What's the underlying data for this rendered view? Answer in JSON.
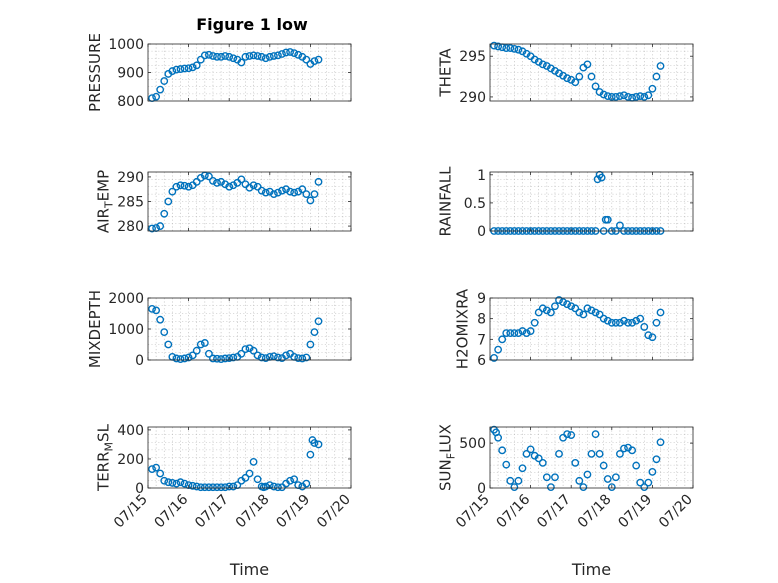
{
  "figure": {
    "title": "Figure 1 low",
    "accent_color": "#0072BD"
  },
  "chart_data": [
    {
      "type": "scatter",
      "ylabel": "PRESSURE",
      "ylim": [
        800,
        1000
      ],
      "yticks": [
        800,
        900,
        1000
      ],
      "xlabel": "",
      "xtick_labels": [],
      "grid": true,
      "x": [
        15.1,
        15.2,
        15.3,
        15.4,
        15.5,
        15.6,
        15.7,
        15.8,
        15.9,
        16.0,
        16.1,
        16.2,
        16.3,
        16.4,
        16.5,
        16.6,
        16.7,
        16.8,
        16.9,
        17.0,
        17.1,
        17.2,
        17.3,
        17.4,
        17.5,
        17.6,
        17.7,
        17.8,
        17.9,
        18.0,
        18.1,
        18.2,
        18.3,
        18.4,
        18.5,
        18.6,
        18.7,
        18.8,
        18.9,
        19.0,
        19.1,
        19.2
      ],
      "y": [
        810,
        815,
        840,
        870,
        895,
        905,
        910,
        912,
        914,
        915,
        918,
        925,
        945,
        960,
        962,
        958,
        955,
        955,
        958,
        955,
        950,
        945,
        935,
        955,
        958,
        960,
        958,
        955,
        950,
        955,
        958,
        960,
        965,
        970,
        972,
        968,
        962,
        955,
        945,
        930,
        940,
        945
      ]
    },
    {
      "type": "scatter",
      "ylabel": "THETA",
      "ylim": [
        289.5,
        296.5
      ],
      "yticks": [
        290,
        295
      ],
      "xlabel": "",
      "xtick_labels": [],
      "grid": true,
      "x": [
        15.1,
        15.2,
        15.3,
        15.4,
        15.5,
        15.6,
        15.7,
        15.8,
        15.9,
        16.0,
        16.1,
        16.2,
        16.3,
        16.4,
        16.5,
        16.6,
        16.7,
        16.8,
        16.9,
        17.0,
        17.1,
        17.2,
        17.3,
        17.4,
        17.5,
        17.6,
        17.7,
        17.8,
        17.9,
        18.0,
        18.1,
        18.2,
        18.3,
        18.4,
        18.5,
        18.6,
        18.7,
        18.8,
        18.9,
        19.0,
        19.1,
        19.2
      ],
      "y": [
        296.3,
        296.2,
        296.1,
        296.0,
        296.0,
        295.9,
        295.8,
        295.6,
        295.3,
        295.0,
        294.6,
        294.3,
        294.0,
        293.8,
        293.5,
        293.2,
        292.9,
        292.6,
        292.3,
        292.1,
        291.8,
        292.5,
        293.6,
        294.0,
        292.5,
        291.3,
        290.6,
        290.3,
        290.1,
        290.0,
        290.0,
        290.1,
        290.2,
        290.0,
        289.9,
        290.0,
        290.1,
        290.0,
        290.2,
        291.0,
        292.5,
        293.8
      ]
    },
    {
      "type": "scatter",
      "ylabel": "AIR_TEMP",
      "ylim": [
        279,
        291
      ],
      "yticks": [
        280,
        285,
        290
      ],
      "xlabel": "",
      "xtick_labels": [],
      "grid": true,
      "x": [
        15.1,
        15.2,
        15.3,
        15.4,
        15.5,
        15.6,
        15.7,
        15.8,
        15.9,
        16.0,
        16.1,
        16.2,
        16.3,
        16.4,
        16.5,
        16.6,
        16.7,
        16.8,
        16.9,
        17.0,
        17.1,
        17.2,
        17.3,
        17.4,
        17.5,
        17.6,
        17.7,
        17.8,
        17.9,
        18.0,
        18.1,
        18.2,
        18.3,
        18.4,
        18.5,
        18.6,
        18.7,
        18.8,
        18.9,
        19.0,
        19.1,
        19.2
      ],
      "y": [
        279.5,
        279.6,
        280.0,
        282.5,
        285.0,
        287.0,
        288.0,
        288.3,
        288.2,
        288.0,
        288.3,
        289.0,
        289.8,
        290.3,
        290.1,
        289.2,
        288.8,
        289.0,
        288.5,
        288.0,
        288.3,
        288.8,
        289.5,
        288.5,
        287.8,
        288.3,
        288.0,
        287.2,
        286.8,
        287.0,
        286.5,
        286.8,
        287.2,
        287.5,
        287.0,
        286.8,
        287.0,
        287.5,
        286.5,
        285.2,
        286.5,
        289.0
      ]
    },
    {
      "type": "scatter",
      "ylabel": "RAINFALL",
      "ylim": [
        0,
        1.05
      ],
      "yticks": [
        0,
        0.5,
        1
      ],
      "xlabel": "",
      "xtick_labels": [],
      "grid": true,
      "x": [
        15.1,
        15.2,
        15.3,
        15.4,
        15.5,
        15.6,
        15.7,
        15.8,
        15.9,
        16.0,
        16.1,
        16.2,
        16.3,
        16.4,
        16.5,
        16.6,
        16.7,
        16.8,
        16.9,
        17.0,
        17.1,
        17.2,
        17.3,
        17.4,
        17.5,
        17.6,
        17.65,
        17.7,
        17.75,
        17.8,
        17.85,
        17.9,
        18.0,
        18.1,
        18.2,
        18.3,
        18.4,
        18.5,
        18.6,
        18.7,
        18.8,
        18.9,
        19.0,
        19.1,
        19.2
      ],
      "y": [
        0,
        0,
        0,
        0,
        0,
        0,
        0,
        0,
        0,
        0,
        0,
        0,
        0,
        0,
        0,
        0,
        0,
        0,
        0,
        0,
        0,
        0,
        0,
        0,
        0,
        0,
        0.92,
        1.0,
        0.95,
        0,
        0.2,
        0.2,
        0,
        0,
        0.1,
        0,
        0,
        0,
        0,
        0,
        0,
        0,
        0,
        0,
        0
      ]
    },
    {
      "type": "scatter",
      "ylabel": "MIXDEPTH",
      "ylim": [
        0,
        2000
      ],
      "yticks": [
        0,
        1000,
        2000
      ],
      "xlabel": "",
      "xtick_labels": [],
      "grid": true,
      "x": [
        15.1,
        15.2,
        15.3,
        15.4,
        15.5,
        15.6,
        15.7,
        15.8,
        15.9,
        16.0,
        16.1,
        16.2,
        16.3,
        16.4,
        16.5,
        16.6,
        16.7,
        16.8,
        16.9,
        17.0,
        17.1,
        17.2,
        17.3,
        17.4,
        17.5,
        17.6,
        17.7,
        17.8,
        17.9,
        18.0,
        18.1,
        18.2,
        18.3,
        18.4,
        18.5,
        18.6,
        18.7,
        18.8,
        18.9,
        19.0,
        19.1,
        19.2
      ],
      "y": [
        1650,
        1600,
        1300,
        900,
        500,
        100,
        50,
        30,
        50,
        80,
        150,
        300,
        500,
        550,
        200,
        50,
        40,
        30,
        50,
        60,
        80,
        100,
        200,
        350,
        380,
        300,
        150,
        80,
        60,
        100,
        120,
        80,
        60,
        150,
        200,
        100,
        60,
        50,
        80,
        500,
        900,
        1250
      ]
    },
    {
      "type": "scatter",
      "ylabel": "H2OMIXRA",
      "ylim": [
        6,
        9
      ],
      "yticks": [
        6,
        7,
        8,
        9
      ],
      "xlabel": "",
      "xtick_labels": [],
      "grid": true,
      "x": [
        15.1,
        15.2,
        15.3,
        15.4,
        15.5,
        15.6,
        15.7,
        15.8,
        15.9,
        16.0,
        16.1,
        16.2,
        16.3,
        16.4,
        16.5,
        16.6,
        16.7,
        16.8,
        16.9,
        17.0,
        17.1,
        17.2,
        17.3,
        17.4,
        17.5,
        17.6,
        17.7,
        17.8,
        17.9,
        18.0,
        18.1,
        18.2,
        18.3,
        18.4,
        18.5,
        18.6,
        18.7,
        18.8,
        18.9,
        19.0,
        19.1,
        19.2
      ],
      "y": [
        6.1,
        6.5,
        7.0,
        7.3,
        7.3,
        7.3,
        7.3,
        7.4,
        7.3,
        7.4,
        7.8,
        8.3,
        8.5,
        8.4,
        8.3,
        8.6,
        8.9,
        8.8,
        8.7,
        8.6,
        8.5,
        8.3,
        8.2,
        8.5,
        8.4,
        8.3,
        8.2,
        8.0,
        7.9,
        7.8,
        7.8,
        7.8,
        7.9,
        7.8,
        7.8,
        7.9,
        8.0,
        7.6,
        7.2,
        7.1,
        7.8,
        8.3
      ]
    },
    {
      "type": "scatter",
      "ylabel": "TERR_MSL",
      "ylim": [
        0,
        420
      ],
      "yticks": [
        0,
        200,
        400
      ],
      "xlabel": "Time",
      "xtick_labels": [
        "07/15",
        "07/16",
        "07/17",
        "07/18",
        "07/19",
        "07/20"
      ],
      "xlim": [
        15,
        20
      ],
      "grid": true,
      "x": [
        15.1,
        15.2,
        15.3,
        15.4,
        15.5,
        15.6,
        15.7,
        15.8,
        15.9,
        16.0,
        16.1,
        16.2,
        16.3,
        16.4,
        16.5,
        16.6,
        16.7,
        16.8,
        16.9,
        17.0,
        17.1,
        17.2,
        17.3,
        17.4,
        17.5,
        17.6,
        17.7,
        17.8,
        17.85,
        17.9,
        18.0,
        18.1,
        18.2,
        18.3,
        18.4,
        18.5,
        18.6,
        18.7,
        18.8,
        18.9,
        19.0,
        19.05,
        19.1,
        19.2
      ],
      "y": [
        130,
        140,
        100,
        50,
        40,
        35,
        30,
        40,
        30,
        20,
        15,
        10,
        5,
        5,
        5,
        5,
        5,
        5,
        5,
        10,
        10,
        20,
        50,
        70,
        100,
        180,
        60,
        10,
        5,
        10,
        20,
        10,
        5,
        5,
        30,
        50,
        60,
        20,
        10,
        30,
        230,
        330,
        310,
        300
      ]
    },
    {
      "type": "scatter",
      "ylabel": "SUN_FLUX",
      "ylim": [
        0,
        680
      ],
      "yticks": [
        0,
        500
      ],
      "xlabel": "Time",
      "xtick_labels": [
        "07/15",
        "07/16",
        "07/17",
        "07/18",
        "07/19",
        "07/20"
      ],
      "xlim": [
        15,
        20
      ],
      "grid": true,
      "x": [
        15.1,
        15.15,
        15.2,
        15.3,
        15.4,
        15.5,
        15.6,
        15.7,
        15.8,
        15.9,
        16.0,
        16.1,
        16.2,
        16.3,
        16.4,
        16.5,
        16.6,
        16.7,
        16.8,
        16.9,
        17.0,
        17.1,
        17.2,
        17.3,
        17.4,
        17.5,
        17.6,
        17.7,
        17.8,
        17.9,
        18.0,
        18.1,
        18.2,
        18.3,
        18.4,
        18.5,
        18.6,
        18.7,
        18.8,
        18.9,
        19.0,
        19.1,
        19.2
      ],
      "y": [
        650,
        620,
        560,
        420,
        260,
        80,
        10,
        80,
        220,
        380,
        430,
        360,
        330,
        280,
        120,
        10,
        120,
        380,
        560,
        600,
        590,
        280,
        80,
        10,
        150,
        380,
        600,
        380,
        250,
        100,
        10,
        120,
        380,
        440,
        450,
        420,
        250,
        60,
        10,
        60,
        180,
        320,
        510
      ]
    }
  ]
}
